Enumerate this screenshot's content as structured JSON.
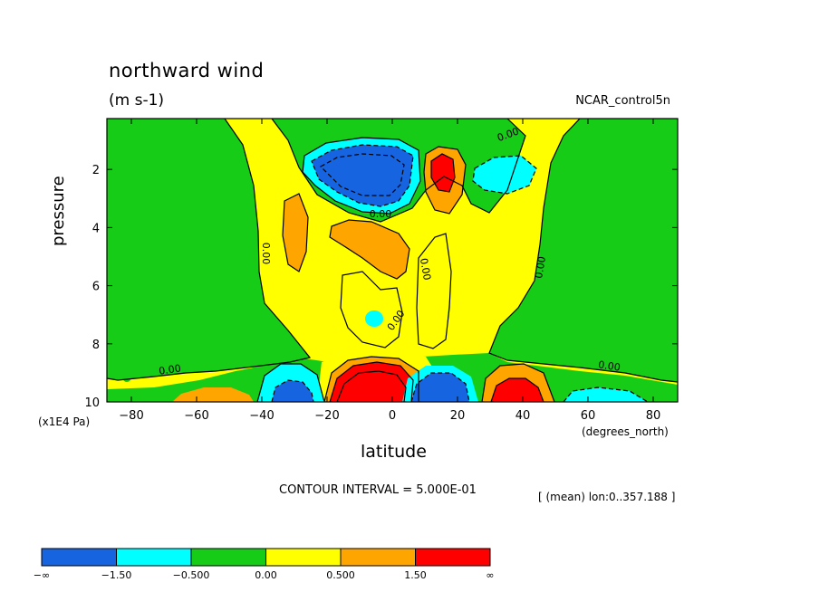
{
  "chart_data": {
    "type": "heatmap",
    "subtype": "filled contour",
    "title": "northward wind",
    "units": "(m s-1)",
    "dataset_label": "NCAR_control5n",
    "xlabel": "latitude",
    "x_units": "(degrees_north)",
    "ylabel": "pressure",
    "y_units": "(x1E4 Pa)",
    "xlim": [
      -87.5,
      87.5
    ],
    "ylim": [
      10,
      0.25
    ],
    "y_axis": "inverted (pressure increases downward)",
    "xticks": [
      "-80",
      "-60",
      "-40",
      "-20",
      "0",
      "20",
      "40",
      "60",
      "80"
    ],
    "yticks": [
      "2",
      "4",
      "6",
      "8",
      "10"
    ],
    "contour_interval": "CONTOUR INTERVAL = 5.000E-01",
    "mean_note": "[ (mean) lon:0..357.188 ]",
    "contour_labels": [
      "0.00",
      "0.00",
      "0.00",
      "0.00",
      "0.00",
      "0.00",
      "0.00",
      "0.00"
    ],
    "colorbar": {
      "colors": [
        "#1764e0",
        "#00ffff",
        "#16cc16",
        "#ffff00",
        "#ffa500",
        "#ff0000"
      ],
      "labels": [
        "-∞",
        "-1.50",
        "-0.500",
        "0.00",
        "0.500",
        "1.50",
        "∞"
      ]
    },
    "features": [
      {
        "name": "upper-level negative cell",
        "lat": -5,
        "pressure": 1.8,
        "value_range": "< -1.50"
      },
      {
        "name": "upper-level positive cell",
        "lat": 13,
        "pressure": 1.9,
        "value_range": "> 1.50"
      },
      {
        "name": "upper-level weak negative",
        "lat": 30,
        "pressure": 1.9,
        "value_range": "-1.50 to -0.500"
      },
      {
        "name": "near-surface positive cell",
        "lat": -5,
        "pressure": 9.5,
        "value_range": "> 1.50"
      },
      {
        "name": "near-surface negative cell",
        "lat": 12,
        "pressure": 9.5,
        "value_range": "< -1.50"
      },
      {
        "name": "near-surface negative cell SH",
        "lat": -32,
        "pressure": 9.6,
        "value_range": "< -1.50"
      },
      {
        "name": "near-surface positive cell NH",
        "lat": 38,
        "pressure": 9.6,
        "value_range": "> 1.50"
      }
    ]
  }
}
